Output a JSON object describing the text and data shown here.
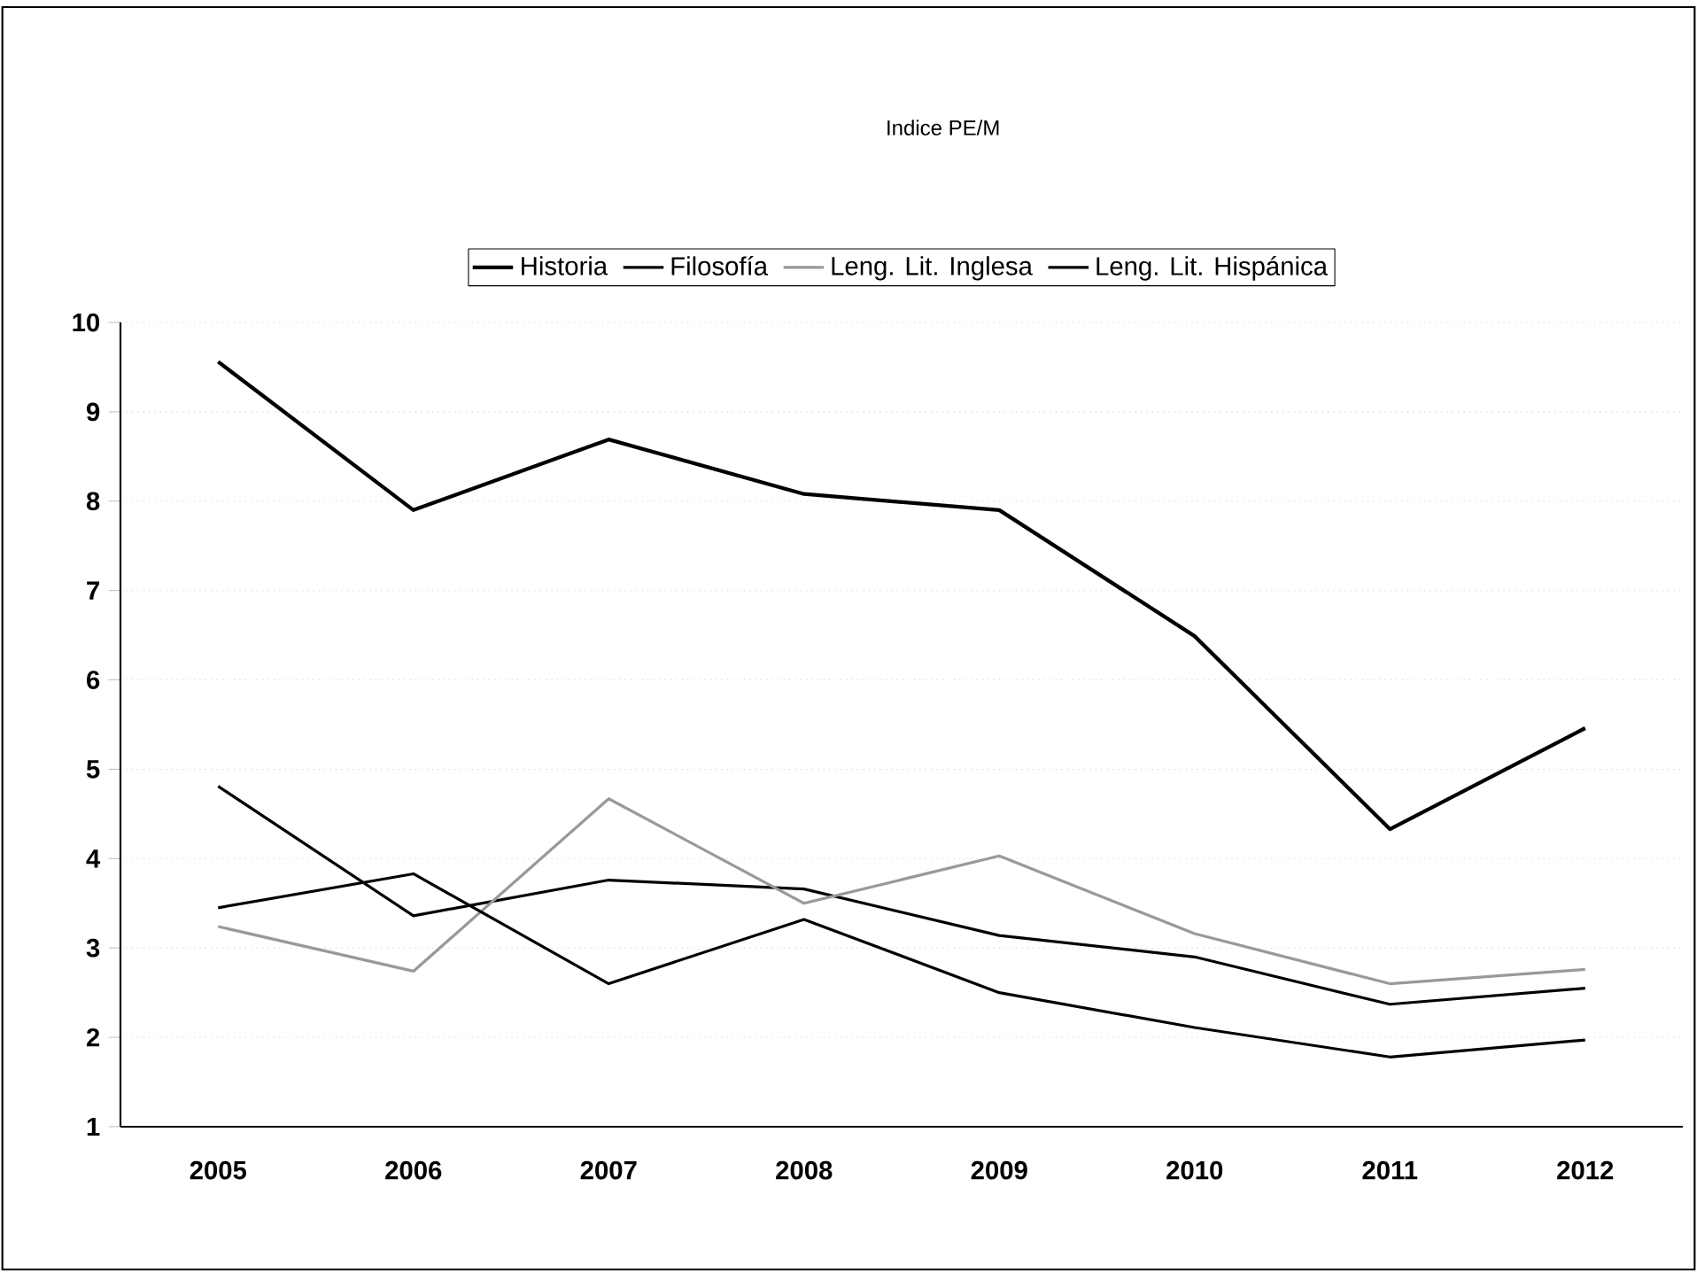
{
  "chart_data": {
    "type": "line",
    "title": "Indice PE/M",
    "categories": [
      "2005",
      "2006",
      "2007",
      "2008",
      "2009",
      "2010",
      "2011",
      "2012"
    ],
    "series": [
      {
        "name": "Historia",
        "color": "#000000",
        "values": [
          9.56,
          7.9,
          8.69,
          8.08,
          7.9,
          6.49,
          4.33,
          5.46
        ]
      },
      {
        "name": "Filosofía",
        "color": "#000000",
        "values": [
          4.81,
          3.36,
          3.76,
          3.66,
          3.14,
          2.9,
          2.37,
          2.55
        ]
      },
      {
        "name": "Leng. Lit. Inglesa",
        "color": "#999999",
        "values": [
          3.24,
          2.74,
          4.67,
          3.5,
          4.03,
          3.16,
          2.6,
          2.76
        ]
      },
      {
        "name": "Leng. Lit. Hispánica",
        "color": "#000000",
        "values": [
          3.45,
          3.83,
          2.6,
          3.32,
          2.5,
          2.11,
          1.78,
          1.97
        ]
      }
    ],
    "ylim": [
      1,
      10
    ],
    "yticks": [
      1,
      2,
      3,
      4,
      5,
      6,
      7,
      8,
      9,
      10
    ],
    "grid": "y",
    "legend": "top",
    "marker": "none",
    "line_style": "solid"
  }
}
